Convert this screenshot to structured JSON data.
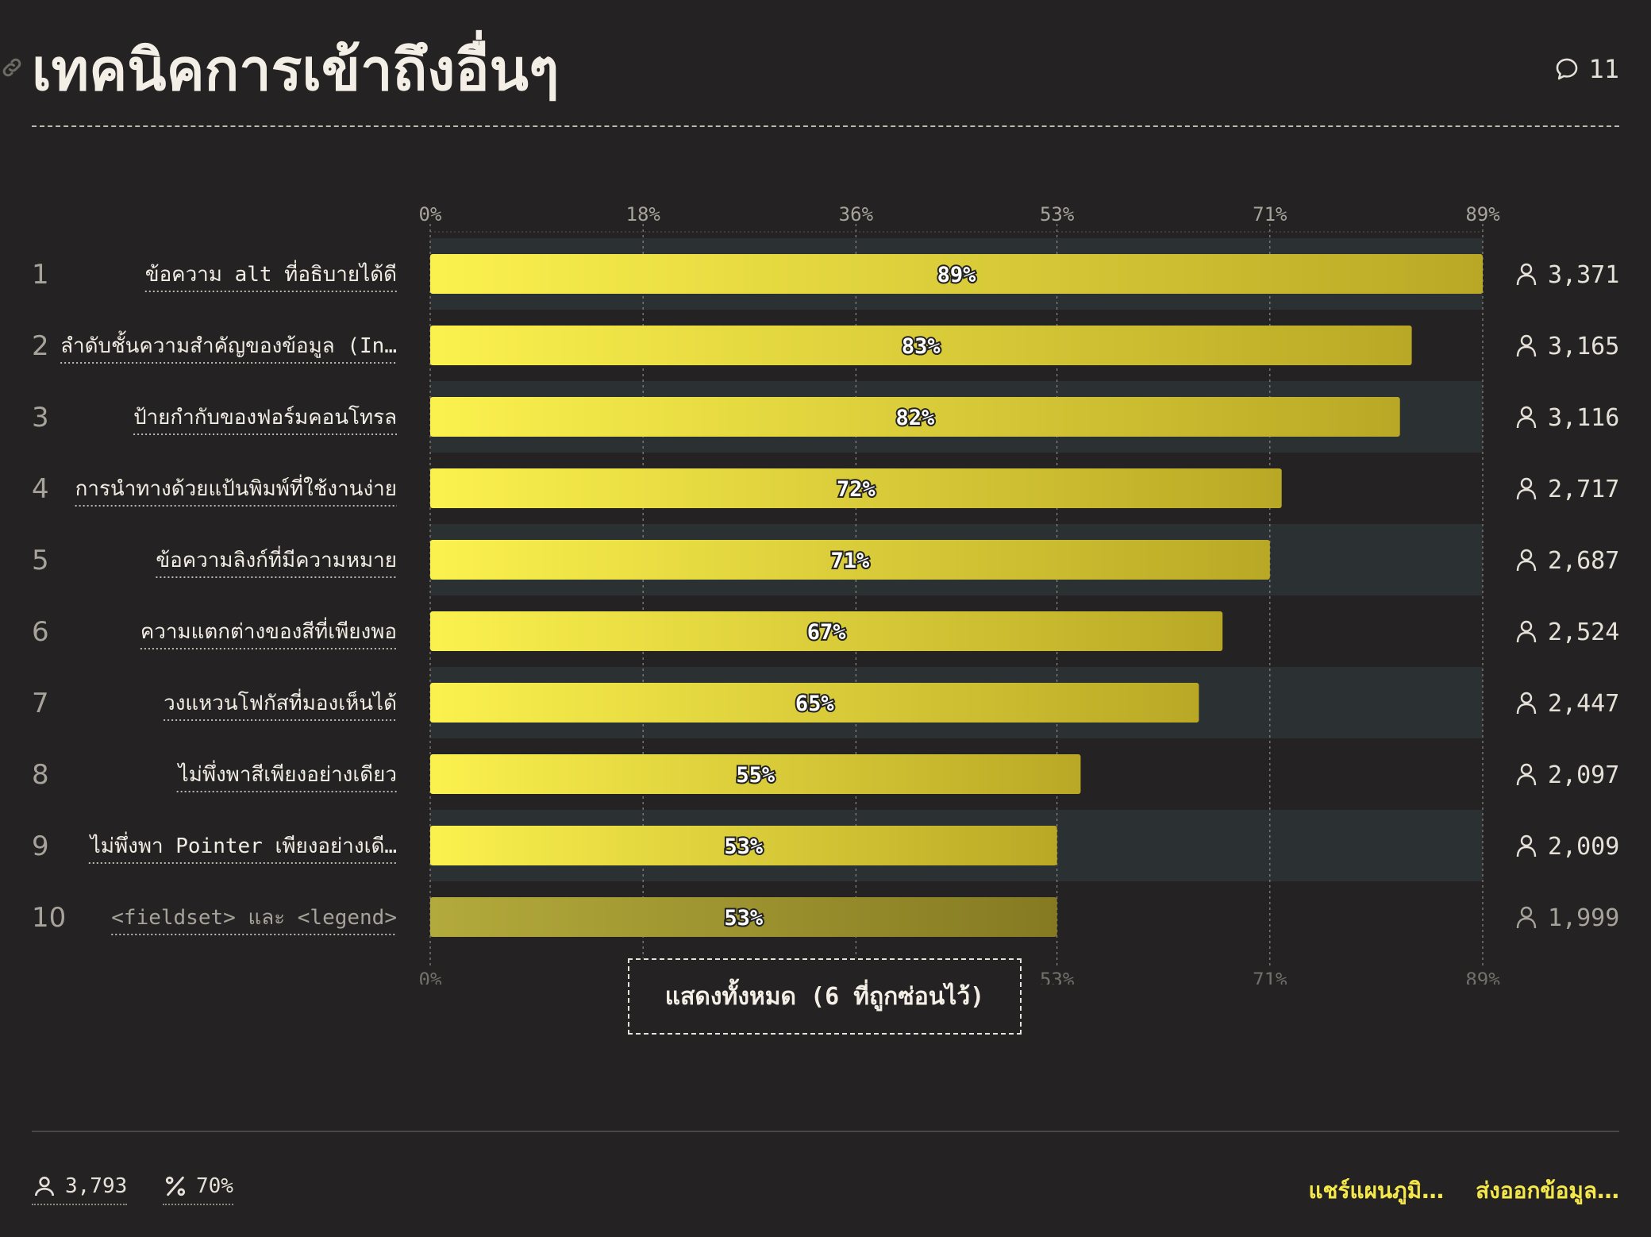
{
  "header": {
    "title": "เทคนิคการเข้าถึงอื่นๆ",
    "comment_count": "11"
  },
  "chart_data": {
    "type": "bar",
    "orientation": "horizontal",
    "xlim": [
      0,
      89
    ],
    "x_ticks": [
      "0%",
      "18%",
      "36%",
      "53%",
      "71%",
      "89%"
    ],
    "grid": true,
    "categories": [
      "ข้อความ alt ที่อธิบายได้ดี",
      "ลำดับชั้นความสำคัญของข้อมูล (In…",
      "ป้ายกำกับของฟอร์มคอนโทรล",
      "การนำทางด้วยแป้นพิมพ์ที่ใช้งานง่าย",
      "ข้อความลิงก์ที่มีความหมาย",
      "ความแตกต่างของสีที่เพียงพอ",
      "วงแหวนโฟกัสที่มองเห็นได้",
      "ไม่พึ่งพาสีเพียงอย่างเดียว",
      "ไม่พึ่งพา Pointer เพียงอย่างเดี…",
      "<fieldset> และ <legend>"
    ],
    "values": [
      89,
      83,
      82,
      72,
      71,
      67,
      65,
      55,
      53,
      53
    ],
    "value_labels": [
      "89%",
      "83%",
      "82%",
      "72%",
      "71%",
      "67%",
      "65%",
      "55%",
      "53%",
      "53%"
    ],
    "counts": [
      "3,371",
      "3,165",
      "3,116",
      "2,717",
      "2,687",
      "2,524",
      "2,447",
      "2,097",
      "2,009",
      "1,999"
    ],
    "ranks": [
      "1",
      "2",
      "3",
      "4",
      "5",
      "6",
      "7",
      "8",
      "9",
      "10"
    ]
  },
  "show_all_label": "แสดงทั้งหมด (6 ที่ถูกซ่อนไว้)",
  "footer": {
    "respondents": "3,793",
    "percent": "70%",
    "share_label": "แชร์แผนภูมิ…",
    "export_label": "ส่งออกข้อมูล…"
  },
  "colors": {
    "background": "#252223",
    "bar_start": "#fbf14e",
    "bar_end": "#b9a825",
    "row_band": "#2b3032",
    "accent": "#f5e84a"
  },
  "icons": [
    "link-icon",
    "comment-icon",
    "user-icon",
    "percent-icon"
  ]
}
